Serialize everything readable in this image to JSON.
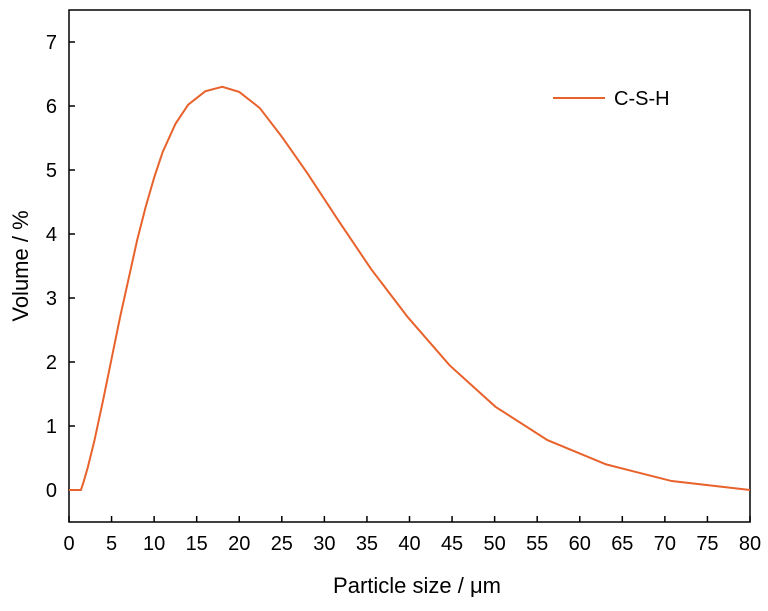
{
  "chart_data": {
    "type": "line",
    "title": "",
    "xlabel": "Particle size / μm",
    "ylabel": "Volume / %",
    "xlim": [
      0,
      80
    ],
    "ylim": [
      -0.5,
      7.5
    ],
    "xticks": [
      0,
      5,
      10,
      15,
      20,
      25,
      30,
      35,
      40,
      45,
      50,
      55,
      60,
      65,
      70,
      75,
      80
    ],
    "yticks": [
      0,
      1,
      2,
      3,
      4,
      5,
      6,
      7
    ],
    "grid": false,
    "legend_position": "top-right",
    "series": [
      {
        "name": "C-S-H",
        "color": "#e8622c",
        "x": [
          0,
          1.4,
          1.7,
          2.2,
          3,
          4,
          5,
          6,
          7,
          8,
          9,
          10,
          11,
          12.5,
          14,
          16,
          18,
          20,
          22.4,
          25,
          28,
          31.6,
          35.5,
          39.8,
          44.7,
          50.1,
          56.2,
          63.1,
          70.8,
          80
        ],
        "y": [
          0,
          0,
          0.12,
          0.35,
          0.78,
          1.4,
          2.05,
          2.7,
          3.3,
          3.9,
          4.42,
          4.88,
          5.28,
          5.72,
          6.02,
          6.23,
          6.3,
          6.22,
          5.97,
          5.52,
          4.95,
          4.22,
          3.45,
          2.7,
          1.95,
          1.3,
          0.78,
          0.4,
          0.14,
          0
        ]
      }
    ]
  }
}
